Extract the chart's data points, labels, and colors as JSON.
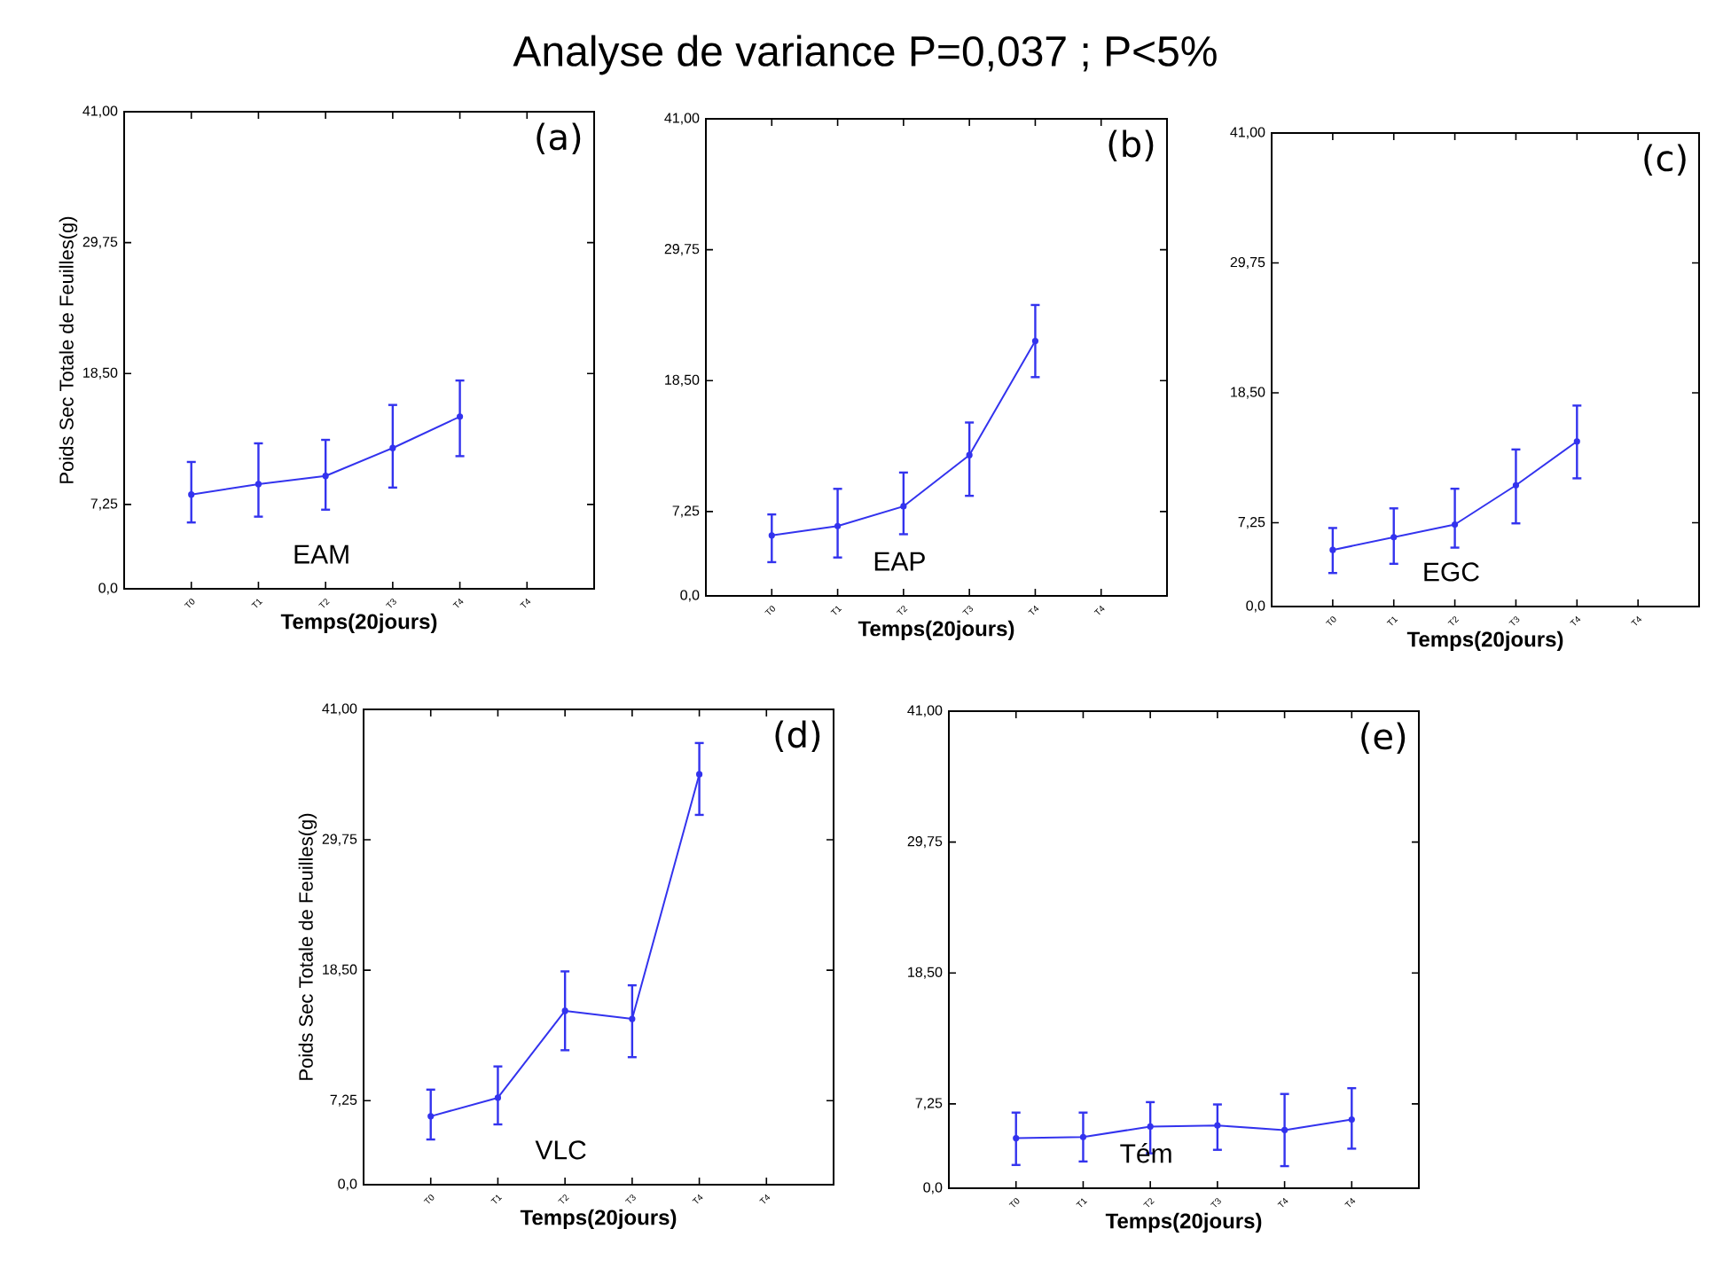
{
  "chart_data": [
    {
      "type": "line",
      "xlabel": "Temps(20jours)",
      "ylabel": "Poids Sec Totale de Feuilles(g)",
      "categories": [
        "T0",
        "T1",
        "T2",
        "T3",
        "T4",
        "T4"
      ],
      "color": "#3333ee",
      "marker": "circle",
      "values": [
        8.1,
        9.0,
        9.7,
        12.1,
        14.8,
        null
      ],
      "errors": [
        [
          5.7,
          10.9
        ],
        [
          6.2,
          12.5
        ],
        [
          6.8,
          12.8
        ],
        [
          8.7,
          15.8
        ],
        [
          11.4,
          17.9
        ],
        null
      ],
      "ylim": [
        0,
        41
      ],
      "yticks": [
        {
          "value": 0,
          "label": "0,0"
        },
        {
          "value": 7.25,
          "label": "7,25"
        },
        {
          "value": 18.5,
          "label": "18,50"
        },
        {
          "value": 29.75,
          "label": "29,75"
        },
        {
          "value": 41,
          "label": "41,00"
        }
      ],
      "annotations": [
        "(a)",
        "EAM"
      ]
    },
    {
      "type": "line",
      "title": "Analyse de variance P=0,037 ; P<5%",
      "xlabel": "Temps(20jours)",
      "categories": [
        "T0",
        "T1",
        "T2",
        "T3",
        "T4",
        "T4"
      ],
      "color": "#3333ee",
      "marker": "circle",
      "values": [
        5.2,
        6.0,
        7.7,
        12.1,
        21.9,
        null
      ],
      "errors": [
        [
          2.9,
          7.0
        ],
        [
          3.3,
          9.2
        ],
        [
          5.3,
          10.6
        ],
        [
          8.6,
          14.9
        ],
        [
          18.8,
          25.0
        ],
        null
      ],
      "ylim": [
        0,
        41
      ],
      "yticks": [
        {
          "value": 0,
          "label": "0,0"
        },
        {
          "value": 7.25,
          "label": "7,25"
        },
        {
          "value": 18.5,
          "label": "18,50"
        },
        {
          "value": 29.75,
          "label": "29,75"
        },
        {
          "value": 41,
          "label": "41,00"
        }
      ],
      "annotations": [
        "(b)",
        "EAP"
      ]
    },
    {
      "type": "line",
      "xlabel": "Temps(20jours)",
      "categories": [
        "T0",
        "T1",
        "T2",
        "T3",
        "T4",
        "T4"
      ],
      "color": "#3333ee",
      "marker": "circle",
      "values": [
        4.9,
        6.0,
        7.1,
        10.5,
        14.3,
        null
      ],
      "errors": [
        [
          2.9,
          6.8
        ],
        [
          3.7,
          8.5
        ],
        [
          5.1,
          10.2
        ],
        [
          7.2,
          13.6
        ],
        [
          11.1,
          17.4
        ],
        null
      ],
      "ylim": [
        0,
        41
      ],
      "yticks": [
        {
          "value": 0,
          "label": "0,0"
        },
        {
          "value": 7.25,
          "label": "7,25"
        },
        {
          "value": 18.5,
          "label": "18,50"
        },
        {
          "value": 29.75,
          "label": "29,75"
        },
        {
          "value": 41,
          "label": "41,00"
        }
      ],
      "annotations": [
        "(c)",
        "EGC"
      ]
    },
    {
      "type": "line",
      "xlabel": "Temps(20jours)",
      "ylabel": "Poids Sec Totale de Feuilles(g)",
      "categories": [
        "T0",
        "T1",
        "T2",
        "T3",
        "T4",
        "T4"
      ],
      "color": "#3333ee",
      "marker": "circle",
      "values": [
        5.9,
        7.5,
        15.0,
        14.3,
        35.4,
        null
      ],
      "errors": [
        [
          3.9,
          8.2
        ],
        [
          5.2,
          10.2
        ],
        [
          11.6,
          18.4
        ],
        [
          11.0,
          17.2
        ],
        [
          31.9,
          38.1
        ],
        null
      ],
      "ylim": [
        0,
        41
      ],
      "yticks": [
        {
          "value": 0,
          "label": "0,0"
        },
        {
          "value": 7.25,
          "label": "7,25"
        },
        {
          "value": 18.5,
          "label": "18,50"
        },
        {
          "value": 29.75,
          "label": "29,75"
        },
        {
          "value": 41,
          "label": "41,00"
        }
      ],
      "annotations": [
        "(d)",
        "VLC"
      ]
    },
    {
      "type": "line",
      "xlabel": "Temps(20jours)",
      "categories": [
        "T0",
        "T1",
        "T2",
        "T3",
        "T4",
        "T4"
      ],
      "color": "#3333ee",
      "marker": "circle",
      "values": [
        4.3,
        4.4,
        5.3,
        5.4,
        5.0,
        5.9
      ],
      "errors": [
        [
          2.0,
          6.5
        ],
        [
          2.3,
          6.5
        ],
        [
          3.0,
          7.4
        ],
        [
          3.3,
          7.2
        ],
        [
          1.9,
          8.1
        ],
        [
          3.4,
          8.6
        ]
      ],
      "ylim": [
        0,
        41
      ],
      "yticks": [
        {
          "value": 0,
          "label": "0,0"
        },
        {
          "value": 7.25,
          "label": "7,25"
        },
        {
          "value": 18.5,
          "label": "18,50"
        },
        {
          "value": 29.75,
          "label": "29,75"
        },
        {
          "value": 41,
          "label": "41,00"
        }
      ],
      "annotations": [
        "(e)",
        "Tém"
      ]
    }
  ]
}
